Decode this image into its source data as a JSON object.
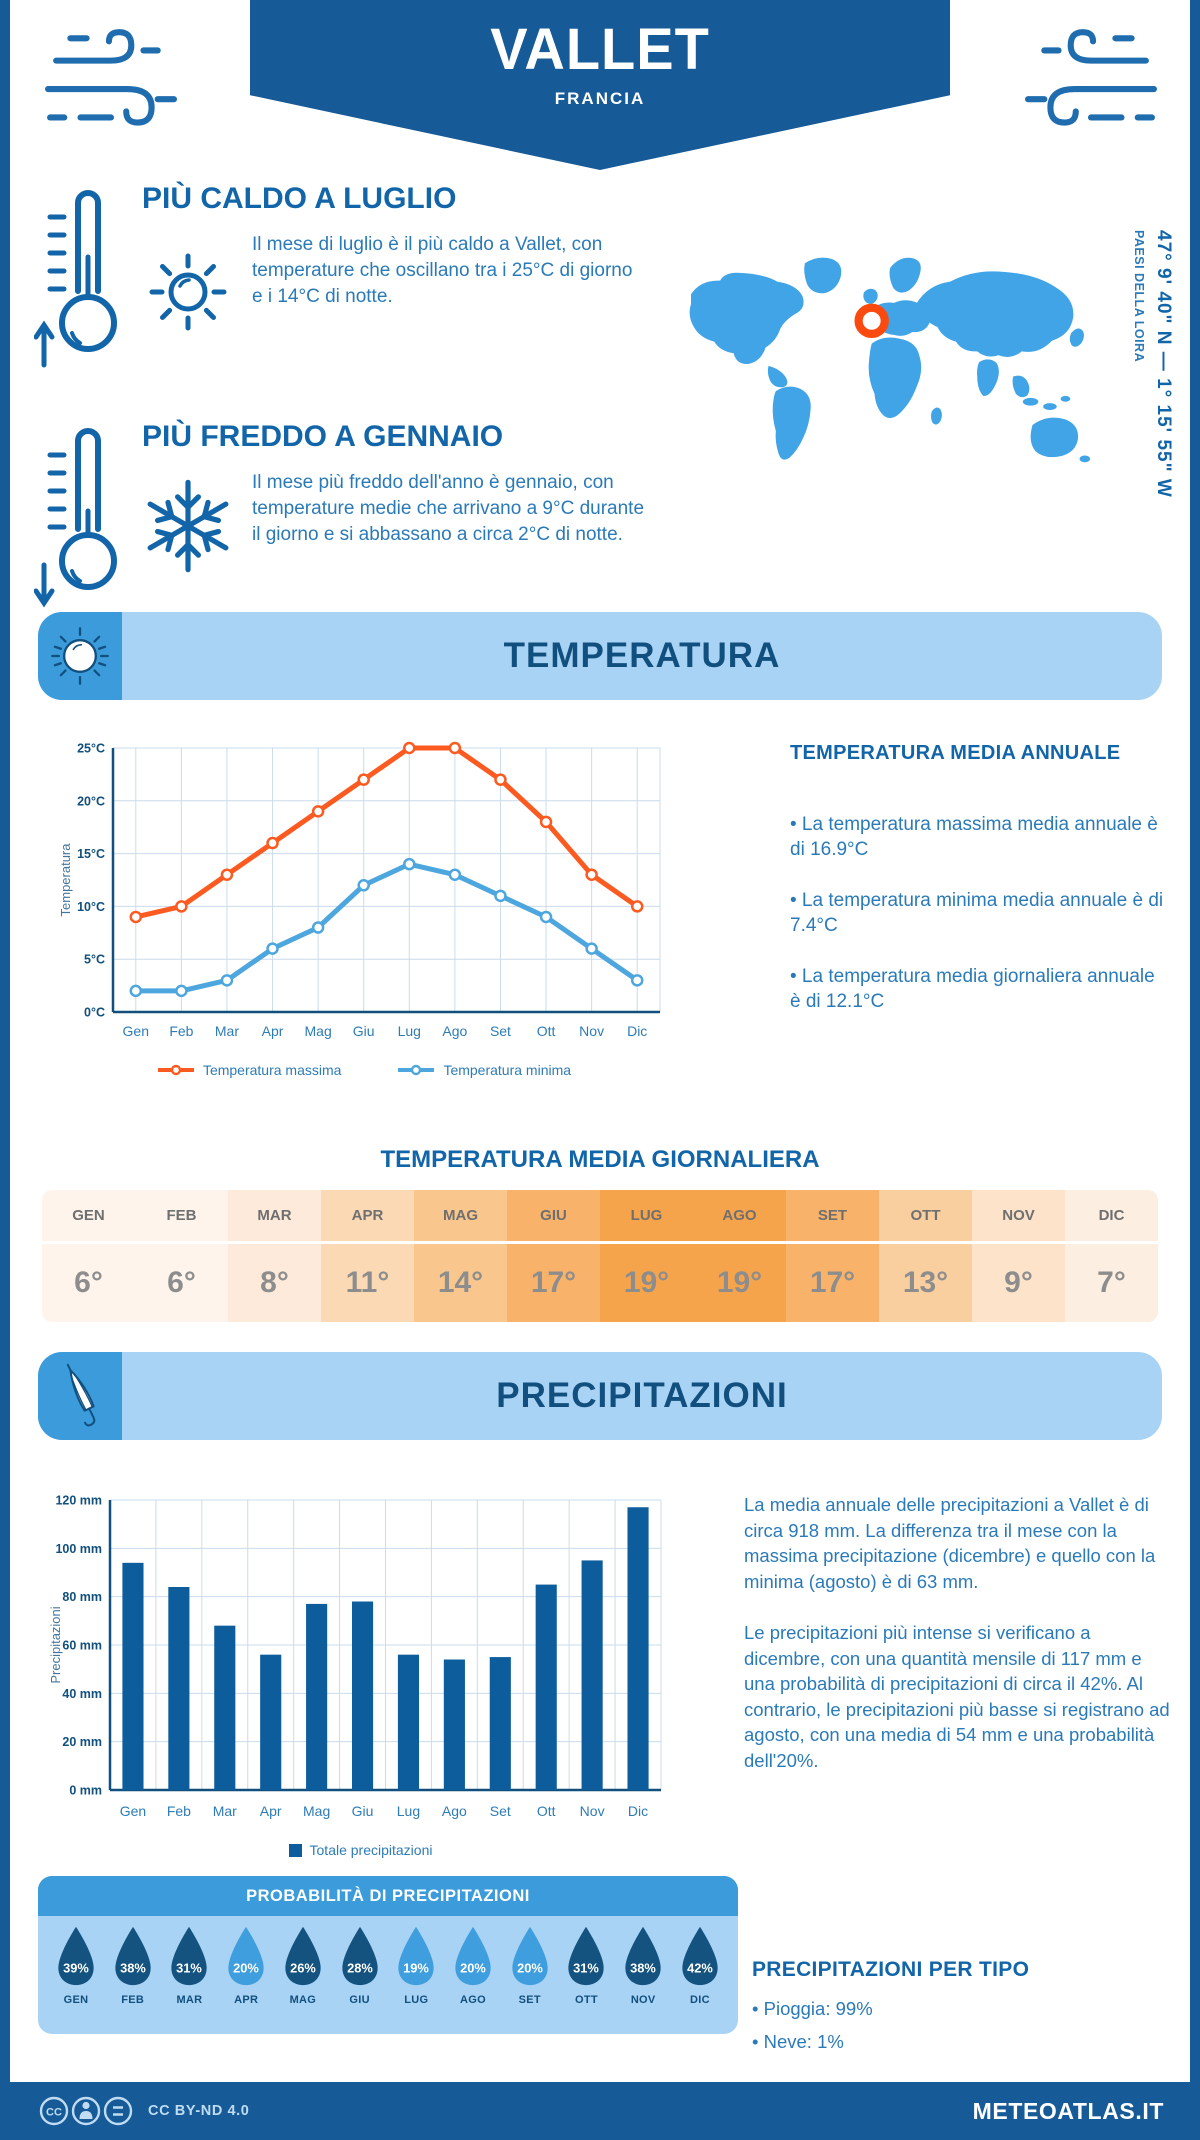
{
  "header": {
    "city": "VALLET",
    "country": "FRANCIA"
  },
  "geo": {
    "coordinates": "47° 9' 40\" N — 1° 15' 55\" W",
    "region": "PAESI DELLA LOIRA"
  },
  "highlights": {
    "hot": {
      "title": "PIÙ CALDO A LUGLIO",
      "text": "Il mese di luglio è il più caldo a Vallet, con temperature che oscillano tra i 25°C di giorno e i 14°C di notte."
    },
    "cold": {
      "title": "PIÙ FREDDO A GENNAIO",
      "text": "Il mese più freddo dell'anno è gennaio, con temperature medie che arrivano a 9°C durante il giorno e si abbassano a circa 2°C di notte."
    }
  },
  "temperature": {
    "section_title": "TEMPERATURA",
    "annual": {
      "title": "TEMPERATURA MEDIA ANNUALE",
      "bullets": [
        "• La temperatura massima media annuale è di 16.9°C",
        "• La temperatura minima media annuale è di 7.4°C",
        "• La temperatura media giornaliera annuale è di 12.1°C"
      ]
    },
    "daily": {
      "title": "TEMPERATURA MEDIA GIORNALIERA",
      "months": [
        "GEN",
        "FEB",
        "MAR",
        "APR",
        "MAG",
        "GIU",
        "LUG",
        "AGO",
        "SET",
        "OTT",
        "NOV",
        "DIC"
      ],
      "values": [
        "6°",
        "6°",
        "8°",
        "11°",
        "14°",
        "17°",
        "19°",
        "19°",
        "17°",
        "13°",
        "9°",
        "7°"
      ],
      "cell_colors": [
        "#fef4ec",
        "#fef4ec",
        "#fdeada",
        "#fbd9b5",
        "#f9c78d",
        "#f8b269",
        "#f6a44c",
        "#f6a44c",
        "#f8b269",
        "#facf9f",
        "#fce3c9",
        "#fdeee2"
      ]
    }
  },
  "precipitation": {
    "section_title": "PRECIPITAZIONI",
    "paragraphs": [
      "La media annuale delle precipitazioni a Vallet è di circa 918 mm. La differenza tra il mese con la massima precipitazione (dicembre) e quello con la minima (agosto) è di 63 mm.",
      "Le precipitazioni più intense si verificano a dicembre, con una quantità mensile di 117 mm e una probabilità di precipitazioni di circa il 42%. Al contrario, le precipitazioni più basse si registrano ad agosto, con una media di 54 mm e una probabilità dell'20%."
    ],
    "probability": {
      "title": "PROBABILITÀ DI PRECIPITAZIONI",
      "months": [
        "GEN",
        "FEB",
        "MAR",
        "APR",
        "MAG",
        "GIU",
        "LUG",
        "AGO",
        "SET",
        "OTT",
        "NOV",
        "DIC"
      ],
      "values": [
        "39%",
        "38%",
        "31%",
        "20%",
        "26%",
        "28%",
        "19%",
        "20%",
        "20%",
        "31%",
        "38%",
        "42%"
      ],
      "drop_colors": [
        "#14527f",
        "#14527f",
        "#14527f",
        "#3f9edd",
        "#14527f",
        "#14527f",
        "#3f9edd",
        "#3f9edd",
        "#3f9edd",
        "#14527f",
        "#14527f",
        "#14527f"
      ]
    },
    "types": {
      "title": "PRECIPITAZIONI PER TIPO",
      "items": [
        "• Pioggia: 99%",
        "• Neve: 1%"
      ]
    }
  },
  "chart_data": [
    {
      "type": "line",
      "title": "Temperatura massima e minima mensile",
      "categories": [
        "Gen",
        "Feb",
        "Mar",
        "Apr",
        "Mag",
        "Giu",
        "Lug",
        "Ago",
        "Set",
        "Ott",
        "Nov",
        "Dic"
      ],
      "series": [
        {
          "name": "Temperatura massima",
          "color": "#fb5b21",
          "values": [
            9,
            10,
            13,
            16,
            19,
            22,
            25,
            25,
            22,
            18,
            13,
            10
          ]
        },
        {
          "name": "Temperatura minima",
          "color": "#4da6de",
          "values": [
            2,
            2,
            3,
            6,
            8,
            12,
            14,
            13,
            11,
            9,
            6,
            3
          ]
        }
      ],
      "ylabel": "Temperatura",
      "ylim": [
        0,
        25
      ],
      "ytick_step": 5,
      "ytick_suffix": "°C",
      "grid": true,
      "legend_position": "bottom"
    },
    {
      "type": "bar",
      "title": "Totale precipitazioni mensili",
      "categories": [
        "Gen",
        "Feb",
        "Mar",
        "Apr",
        "Mag",
        "Giu",
        "Lug",
        "Ago",
        "Set",
        "Ott",
        "Nov",
        "Dic"
      ],
      "series": [
        {
          "name": "Totale precipitazioni",
          "color": "#0d5d9d",
          "values": [
            94,
            84,
            68,
            56,
            77,
            78,
            56,
            54,
            55,
            85,
            95,
            117
          ]
        }
      ],
      "ylabel": "Precipitazioni",
      "ylim": [
        0,
        120
      ],
      "ytick_step": 20,
      "ytick_suffix": " mm",
      "grid": true,
      "legend_position": "bottom"
    }
  ],
  "footer": {
    "cc_icon_label": "CC",
    "license": "CC BY-ND 4.0",
    "site": "METEOATLAS.IT"
  }
}
